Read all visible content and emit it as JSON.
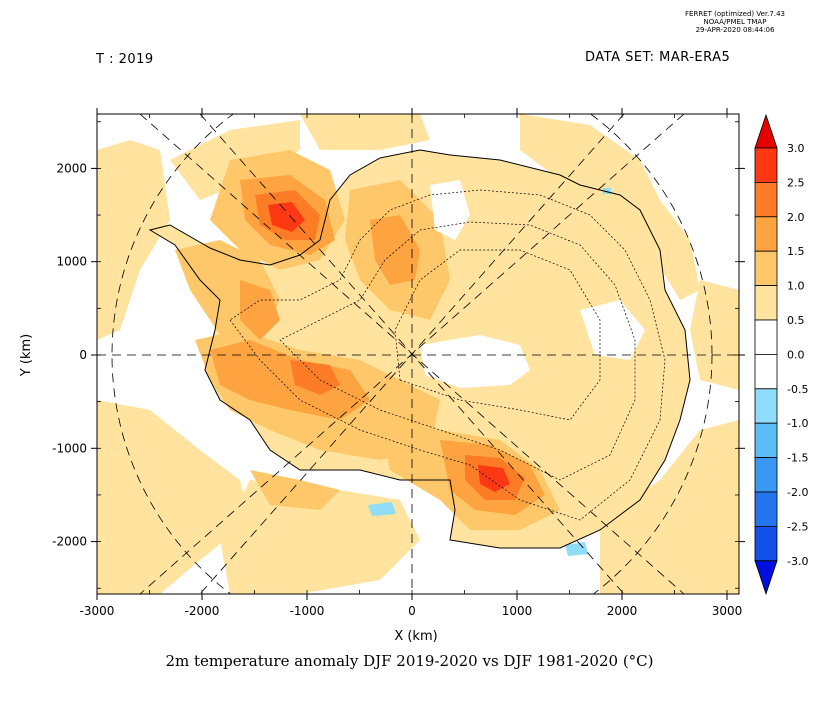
{
  "header": {
    "time_label": "T : 2019",
    "dataset_label": "DATA SET: MAR-ERA5",
    "stamp": [
      "FERRET (optimized) Ver.7.43",
      "NOAA/PMEL TMAP",
      "29-APR-2020 08:44:06"
    ]
  },
  "caption": "2m temperature anomaly DJF 2019-2020 vs DJF 1981-2020 (°C)",
  "axes": {
    "xlabel": "X (km)",
    "ylabel": "Y (km)",
    "xlim": [
      -3000,
      3000
    ],
    "ylim": [
      -2500,
      2500
    ],
    "xticks": [
      -3000,
      -2000,
      -1000,
      0,
      1000,
      2000,
      3000
    ],
    "xtick_labels": [
      "-3000",
      "-2000",
      "-1000",
      "0",
      "1000",
      "2000",
      "3000"
    ],
    "yticks": [
      -2000,
      -1000,
      0,
      1000,
      2000
    ],
    "ytick_labels": [
      "-2000",
      "-1000",
      "0",
      "1000",
      "2000"
    ]
  },
  "colorbar": {
    "labels": [
      "3.0",
      "2.5",
      "2.0",
      "1.5",
      "1.0",
      "0.5",
      "0.0",
      "-0.5",
      "-1.0",
      "-1.5",
      "-2.0",
      "-2.5",
      "-3.0"
    ],
    "colors": [
      "#ff3814",
      "#ff7c26",
      "#fda33f",
      "#fec86a",
      "#ffe39e",
      "#ffffff",
      "#ffffff",
      "#8fdcfb",
      "#5cbcf5",
      "#3a97f2",
      "#2474ee",
      "#1450ea"
    ],
    "over_color": "#e60000",
    "under_color": "#0010e0"
  },
  "map_colors": {
    "c05": "#ffe39e",
    "c10": "#fec86a",
    "c15": "#fda33f",
    "c20": "#ff7c26",
    "c25": "#ff3814",
    "neg05": "#8fdcfb"
  }
}
